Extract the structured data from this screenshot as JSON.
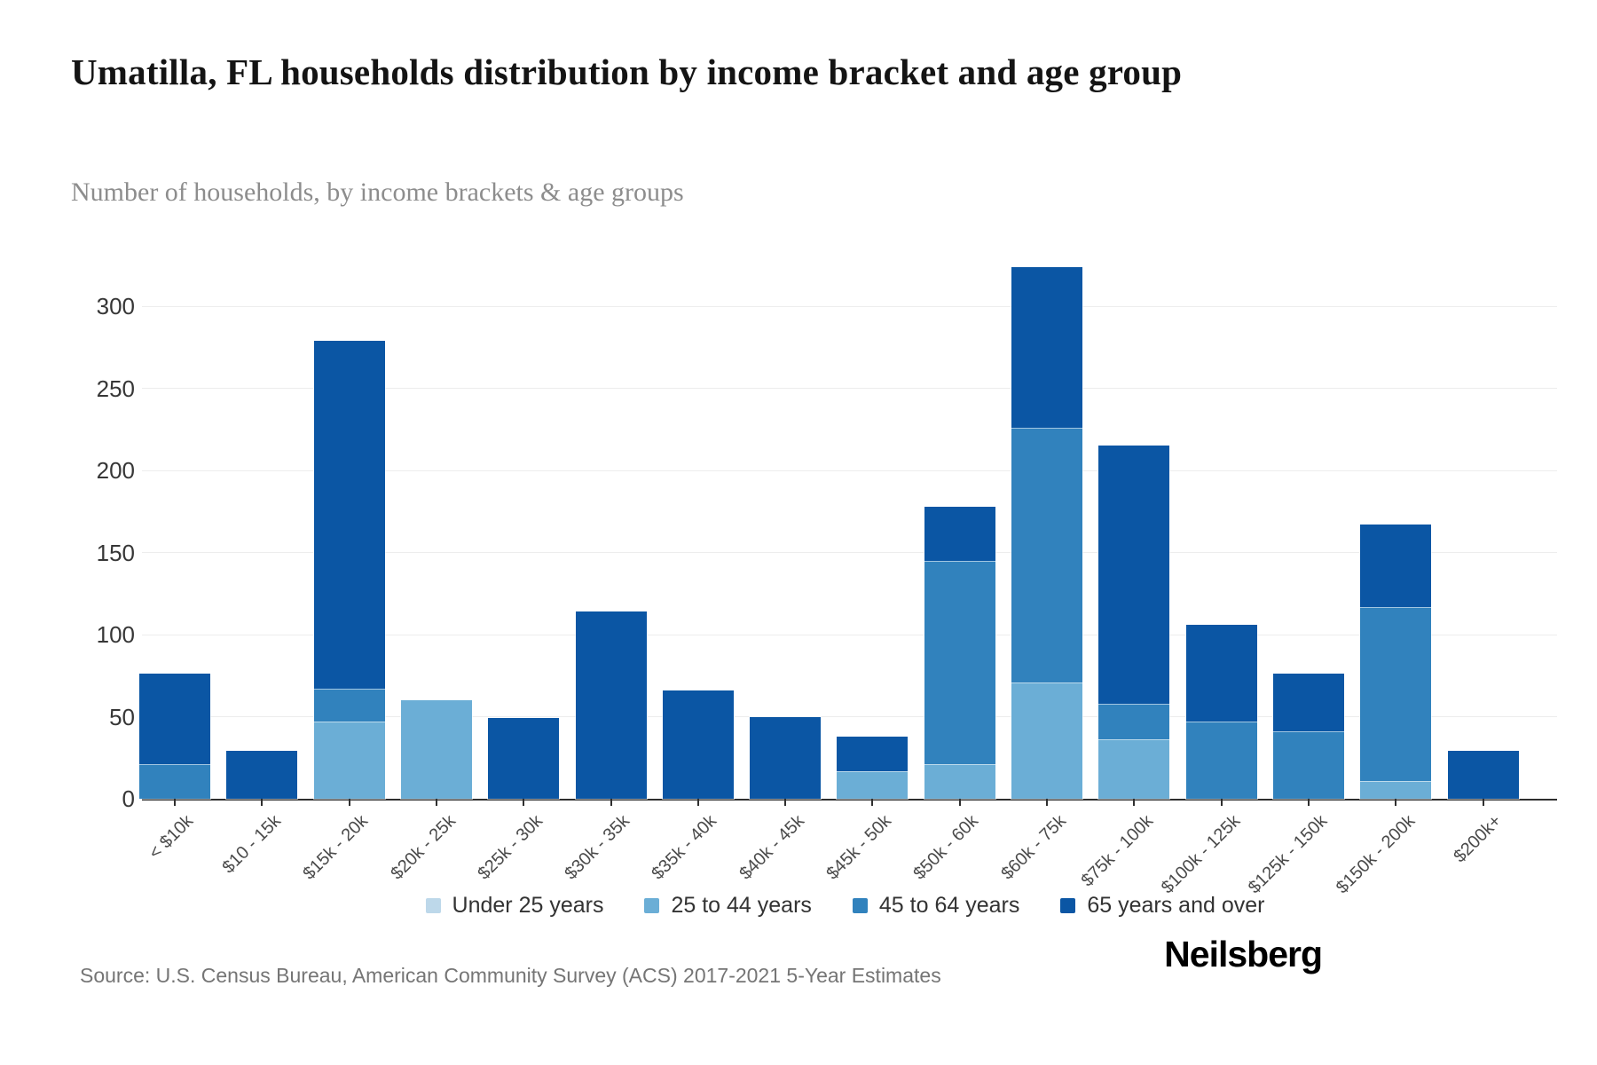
{
  "header": {
    "title": "Umatilla, FL households distribution by income bracket and age group",
    "subtitle": "Number of households, by income brackets & age groups"
  },
  "footer": {
    "source": "Source: U.S. Census Bureau, American Community Survey (ACS) 2017-2021 5-Year Estimates",
    "brand": "Neilsberg"
  },
  "chart_data": {
    "type": "bar",
    "stacked": true,
    "title": "Umatilla, FL households distribution by income bracket and age group",
    "subtitle": "Number of households, by income brackets & age groups",
    "xlabel": "",
    "ylabel": "",
    "grid": "horizontal",
    "legend_position": "bottom",
    "y_ticks": [
      0,
      50,
      100,
      150,
      200,
      250,
      300
    ],
    "ylim": [
      0,
      350
    ],
    "categories": [
      "< $10k",
      "$10 - 15k",
      "$15k - 20k",
      "$20k - 25k",
      "$25k - 30k",
      "$30k - 35k",
      "$35k - 40k",
      "$40k - 45k",
      "$45k - 50k",
      "$50k - 60k",
      "$60k - 75k",
      "$75k - 100k",
      "$100k - 125k",
      "$125k - 150k",
      "$150k - 200k",
      "$200k+"
    ],
    "series": [
      {
        "name": "Under 25 years",
        "color": "#bdd8ea",
        "values": [
          0,
          0,
          0,
          0,
          0,
          0,
          0,
          0,
          0,
          0,
          0,
          0,
          0,
          0,
          0,
          0
        ]
      },
      {
        "name": "25 to 44 years",
        "color": "#6baed6",
        "values": [
          0,
          0,
          47,
          60,
          0,
          0,
          0,
          0,
          17,
          21,
          71,
          36,
          0,
          0,
          11,
          0
        ]
      },
      {
        "name": "45 to 64 years",
        "color": "#3182bd",
        "values": [
          21,
          0,
          20,
          0,
          0,
          0,
          0,
          0,
          0,
          124,
          155,
          22,
          47,
          41,
          106,
          0
        ]
      },
      {
        "name": "65 years and over",
        "color": "#0b56a4",
        "values": [
          55,
          29,
          212,
          0,
          49,
          114,
          66,
          50,
          21,
          33,
          98,
          157,
          59,
          35,
          50,
          29
        ]
      }
    ],
    "totals": [
      76,
      29,
      279,
      60,
      49,
      114,
      66,
      50,
      38,
      178,
      324,
      215,
      106,
      76,
      167,
      29
    ]
  }
}
